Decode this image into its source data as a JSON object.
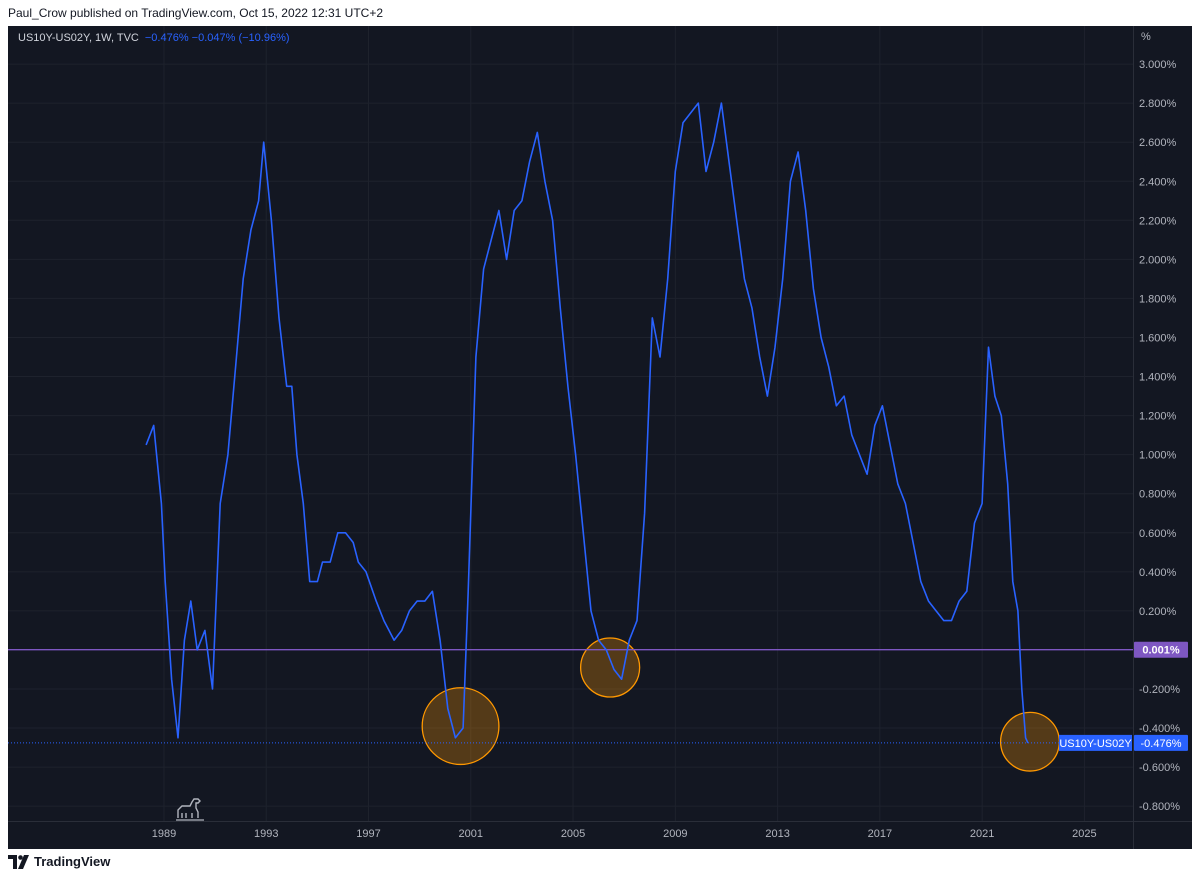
{
  "header": {
    "published": "Paul_Crow published on TradingView.com, Oct 15, 2022 12:31 UTC+2"
  },
  "legend": {
    "symbol": "US10Y-US02Y, 1W, TVC",
    "values": "−0.476%  −0.047% (−10.96%)"
  },
  "unit": "%",
  "footer": {
    "brand": "TradingView"
  },
  "colors": {
    "background": "#131722",
    "line": "#2962ff",
    "zero_line": "#7e57c2",
    "highlight": "#ff9800",
    "grid": "#1e222d",
    "axis_text": "#b2b5be"
  },
  "icons": [
    "dino-logo-icon",
    "tradingview-logo-icon"
  ],
  "chart_data": {
    "type": "line",
    "title": "",
    "series": [
      {
        "name": "US10Y-US02Y",
        "x": [
          1988.3,
          1988.6,
          1988.9,
          1989.05,
          1989.3,
          1989.55,
          1989.8,
          1990.05,
          1990.3,
          1990.6,
          1990.9,
          1991.2,
          1991.5,
          1991.8,
          1992.1,
          1992.4,
          1992.7,
          1992.9,
          1993.2,
          1993.5,
          1993.8,
          1994.0,
          1994.2,
          1994.45,
          1994.7,
          1995.0,
          1995.2,
          1995.5,
          1995.8,
          1996.1,
          1996.4,
          1996.6,
          1996.9,
          1997.3,
          1997.6,
          1998.0,
          1998.3,
          1998.6,
          1998.9,
          1999.2,
          1999.5,
          1999.8,
          2000.1,
          2000.4,
          2000.7,
          2000.9,
          2001.2,
          2001.5,
          2001.8,
          2002.1,
          2002.4,
          2002.7,
          2003.0,
          2003.3,
          2003.6,
          2003.9,
          2004.2,
          2004.5,
          2004.8,
          2005.1,
          2005.4,
          2005.7,
          2006.0,
          2006.3,
          2006.6,
          2006.9,
          2007.2,
          2007.5,
          2007.8,
          2008.1,
          2008.4,
          2008.7,
          2009.0,
          2009.3,
          2009.6,
          2009.9,
          2010.2,
          2010.5,
          2010.8,
          2011.1,
          2011.4,
          2011.7,
          2012.0,
          2012.3,
          2012.6,
          2012.9,
          2013.2,
          2013.5,
          2013.8,
          2014.1,
          2014.4,
          2014.7,
          2015.0,
          2015.3,
          2015.6,
          2015.9,
          2016.2,
          2016.5,
          2016.8,
          2017.1,
          2017.4,
          2017.7,
          2018.0,
          2018.3,
          2018.6,
          2018.9,
          2019.2,
          2019.5,
          2019.8,
          2020.1,
          2020.4,
          2020.7,
          2021.0,
          2021.25,
          2021.5,
          2021.75,
          2022.0,
          2022.2,
          2022.4,
          2022.55,
          2022.7,
          2022.79
        ],
        "values": [
          1.05,
          1.15,
          0.75,
          0.35,
          -0.15,
          -0.45,
          0.05,
          0.25,
          0.0,
          0.1,
          -0.2,
          0.75,
          1.0,
          1.45,
          1.9,
          2.15,
          2.3,
          2.6,
          2.2,
          1.7,
          1.35,
          1.35,
          1.0,
          0.75,
          0.35,
          0.35,
          0.45,
          0.45,
          0.6,
          0.6,
          0.55,
          0.45,
          0.4,
          0.25,
          0.15,
          0.05,
          0.1,
          0.2,
          0.25,
          0.25,
          0.3,
          0.05,
          -0.3,
          -0.45,
          -0.4,
          0.3,
          1.5,
          1.95,
          2.1,
          2.25,
          2.0,
          2.25,
          2.3,
          2.5,
          2.65,
          2.4,
          2.2,
          1.75,
          1.35,
          1.0,
          0.6,
          0.2,
          0.05,
          0.0,
          -0.1,
          -0.15,
          0.05,
          0.15,
          0.7,
          1.7,
          1.5,
          1.9,
          2.45,
          2.7,
          2.75,
          2.8,
          2.45,
          2.6,
          2.8,
          2.5,
          2.2,
          1.9,
          1.75,
          1.5,
          1.3,
          1.55,
          1.9,
          2.4,
          2.55,
          2.25,
          1.85,
          1.6,
          1.45,
          1.25,
          1.3,
          1.1,
          1.0,
          0.9,
          1.15,
          1.25,
          1.05,
          0.85,
          0.75,
          0.55,
          0.35,
          0.25,
          0.2,
          0.15,
          0.15,
          0.25,
          0.3,
          0.65,
          0.75,
          1.55,
          1.3,
          1.2,
          0.85,
          0.35,
          0.2,
          -0.2,
          -0.45,
          -0.476
        ]
      }
    ],
    "xlim": [
      1982.9,
      2026.9
    ],
    "ylim": [
      -0.876,
      3.195
    ],
    "xticks": [
      "1989",
      "1993",
      "1997",
      "2001",
      "2005",
      "2009",
      "2013",
      "2017",
      "2021",
      "2025"
    ],
    "xtick_values": [
      1989,
      1993,
      1997,
      2001,
      2005,
      2009,
      2013,
      2017,
      2021,
      2025
    ],
    "yticks": [
      "3.000%",
      "2.800%",
      "2.600%",
      "2.400%",
      "2.200%",
      "2.000%",
      "1.800%",
      "1.600%",
      "1.400%",
      "1.200%",
      "1.000%",
      "0.800%",
      "0.600%",
      "0.400%",
      "0.200%",
      "-0.200%",
      "-0.400%",
      "-0.600%",
      "-0.800%"
    ],
    "ytick_values": [
      3.0,
      2.8,
      2.6,
      2.4,
      2.2,
      2.0,
      1.8,
      1.6,
      1.4,
      1.2,
      1.0,
      0.8,
      0.6,
      0.4,
      0.2,
      -0.2,
      -0.4,
      -0.6,
      -0.8
    ],
    "horizontal_line": {
      "value": 0.001,
      "label": "0.001%"
    },
    "last_value": {
      "value": -0.476,
      "name_label": "US10Y-US02Y",
      "value_label": "-0.476%"
    },
    "highlights": [
      {
        "x": 2000.6,
        "y": -0.39,
        "rx": 1.55,
        "ry": 0.19
      },
      {
        "x": 2006.45,
        "y": -0.09,
        "rx": 1.2,
        "ry": 0.145
      },
      {
        "x": 2022.87,
        "y": -0.47,
        "rx": 1.15,
        "ry": 0.15
      }
    ],
    "grid": true
  }
}
